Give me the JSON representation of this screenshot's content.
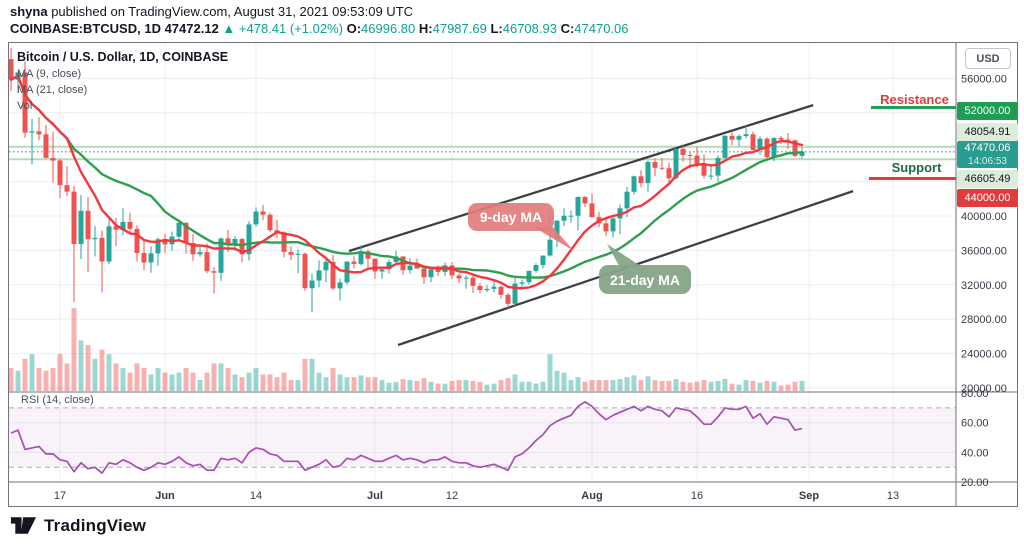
{
  "header": {
    "line1_parts": [
      {
        "text": "shyna",
        "bold": true
      },
      {
        "text": " published on TradingView.com, August 31, 2021 09:53:09 UTC"
      }
    ],
    "line2_parts": [
      {
        "text": "COINBASE:BTCUSD, 1D ",
        "bold": true
      },
      {
        "text": "47472.12 ",
        "bold": true
      },
      {
        "text": "▲ +478.41 (+1.02%) ",
        "color": "#0aa096"
      },
      {
        "text": "O:",
        "bold": true
      },
      {
        "text": "46996.80 ",
        "color": "#0aa096"
      },
      {
        "text": "H:",
        "bold": true
      },
      {
        "text": "47987.69 ",
        "color": "#0aa096"
      },
      {
        "text": "L:",
        "bold": true
      },
      {
        "text": "46708.93 ",
        "color": "#0aa096"
      },
      {
        "text": "C:",
        "bold": true
      },
      {
        "text": "47470.06",
        "color": "#0aa096"
      }
    ]
  },
  "chart": {
    "symbol_title": "Bitcoin / U.S. Dollar, 1D, COINBASE",
    "ma9_label": "MA (9, close)",
    "ma21_label": "MA (21, close)",
    "vol_label": "Vol",
    "rsi_label": "RSI (14, close)",
    "currency_button": "USD",
    "resistance_label": "Resistance",
    "support_label": "Support",
    "ma9_callout": "9-day MA",
    "ma21_callout": "21-day MA",
    "axis_badges": {
      "resistance_price": "52000.00",
      "high_line_price": "48054.91",
      "last_price": "47470.06",
      "countdown": "14:06:53",
      "low_line_price": "46605.49",
      "support_price": "44000.00"
    }
  },
  "footer": {
    "logo_text": "TradingView"
  },
  "colors": {
    "up": "#26a69a",
    "down": "#ef5350",
    "vol_up": "rgba(38,166,154,0.45)",
    "vol_down": "rgba(239,83,80,0.45)",
    "ma9": "#f0393f",
    "ma21": "#2f9e4f",
    "rsi": "#a64fb0",
    "rsi_band": "rgba(166,79,176,0.07)",
    "rsi_dash": "#a9abb8",
    "grid": "rgba(90,120,150,0.12)",
    "divider": "#6e7178",
    "trend": "#3f4044",
    "level_green": "#b7dcb8",
    "last_dotted": "#2a9d8f",
    "axis_text": "#363a45"
  },
  "chart_data": {
    "type": "candlestick",
    "title": "Bitcoin / U.S. Dollar, 1D, COINBASE",
    "interval": "1D",
    "start_date": "2021-05-10",
    "y_range": [
      20000,
      59000
    ],
    "rsi_range": [
      20,
      80
    ],
    "price_axis_ticks": [
      {
        "price": 56000,
        "label": "56000.00"
      },
      {
        "price": 52000,
        "label": "52000.00",
        "hidden": true
      },
      {
        "price": 48000,
        "label": "48000.00",
        "hidden": true
      },
      {
        "price": 44000,
        "label": "44000.00",
        "hidden": true
      },
      {
        "price": 40000,
        "label": "40000.00"
      },
      {
        "price": 36000,
        "label": "36000.00"
      },
      {
        "price": 32000,
        "label": "32000.00"
      },
      {
        "price": 28000,
        "label": "28000.00"
      },
      {
        "price": 24000,
        "label": "24000.00"
      },
      {
        "price": 20000,
        "label": "20000.00"
      }
    ],
    "rsi_axis_ticks": [
      {
        "v": 80,
        "label": "80.00"
      },
      {
        "v": 60,
        "label": "60.00"
      },
      {
        "v": 40,
        "label": "40.00"
      },
      {
        "v": 20,
        "label": "20.00"
      }
    ],
    "time_ticks": [
      {
        "i": 7,
        "label": "17"
      },
      {
        "i": 22,
        "label": "Jun",
        "bold": true
      },
      {
        "i": 35,
        "label": "14"
      },
      {
        "i": 52,
        "label": "Jul",
        "bold": true
      },
      {
        "i": 63,
        "label": "12"
      },
      {
        "i": 83,
        "label": "Aug",
        "bold": true
      },
      {
        "i": 98,
        "label": "16"
      },
      {
        "i": 114,
        "label": "Sep",
        "bold": true
      },
      {
        "i": 126,
        "label": "13"
      }
    ],
    "levels": {
      "resistance": 52000,
      "support": 44000,
      "high_line": 48054.91,
      "last": 47470.06,
      "low_line": 46605.49
    },
    "trend_channel": {
      "upper": {
        "i1": 48.3,
        "p1": 35930,
        "i2": 114.6,
        "p2": 52900
      },
      "lower": {
        "i1": 55.3,
        "p1": 25000,
        "i2": 120.3,
        "p2": 42900
      }
    },
    "candles": [
      [
        58250,
        59500,
        54500,
        55850,
        25
      ],
      [
        55850,
        56800,
        54300,
        56700,
        22
      ],
      [
        56700,
        58000,
        49100,
        49700,
        35
      ],
      [
        49700,
        51300,
        46000,
        49850,
        40
      ],
      [
        49850,
        51500,
        48800,
        49500,
        25
      ],
      [
        49500,
        50600,
        46700,
        46760,
        22
      ],
      [
        46760,
        49800,
        43900,
        46450,
        25
      ],
      [
        46450,
        46600,
        42100,
        43580,
        40
      ],
      [
        43580,
        45800,
        42300,
        42840,
        30
      ],
      [
        42840,
        43500,
        30000,
        36750,
        90
      ],
      [
        36750,
        42450,
        35000,
        40600,
        55
      ],
      [
        40600,
        42200,
        33500,
        37300,
        50
      ],
      [
        37300,
        38800,
        35300,
        37450,
        35
      ],
      [
        37450,
        38300,
        31100,
        34700,
        45
      ],
      [
        34700,
        39900,
        34400,
        38800,
        40
      ],
      [
        38800,
        39800,
        36500,
        38400,
        30
      ],
      [
        38400,
        40900,
        37800,
        39300,
        25
      ],
      [
        39300,
        40400,
        37900,
        38500,
        20
      ],
      [
        38500,
        38900,
        34700,
        35700,
        30
      ],
      [
        35700,
        37300,
        33700,
        34600,
        25
      ],
      [
        34600,
        36500,
        33400,
        35650,
        18
      ],
      [
        35650,
        37500,
        34200,
        37300,
        25
      ],
      [
        37300,
        37900,
        35700,
        36700,
        20
      ],
      [
        36700,
        38200,
        35950,
        37600,
        18
      ],
      [
        37600,
        39500,
        37200,
        39200,
        20
      ],
      [
        39200,
        39300,
        35600,
        36860,
        25
      ],
      [
        36860,
        37900,
        34800,
        35550,
        20
      ],
      [
        35550,
        36450,
        35250,
        35800,
        12
      ],
      [
        35800,
        36800,
        33350,
        33580,
        20
      ],
      [
        33580,
        34070,
        31000,
        33400,
        30
      ],
      [
        33400,
        37500,
        32450,
        37400,
        30
      ],
      [
        37400,
        38400,
        35800,
        36680,
        25
      ],
      [
        36680,
        37650,
        35950,
        37330,
        18
      ],
      [
        37330,
        37450,
        34600,
        35550,
        15
      ],
      [
        35550,
        39380,
        34820,
        39020,
        20
      ],
      [
        39020,
        41000,
        38750,
        40520,
        25
      ],
      [
        40520,
        41300,
        39500,
        40150,
        18
      ],
      [
        40150,
        40400,
        38100,
        38350,
        18
      ],
      [
        38350,
        39550,
        37400,
        38100,
        15
      ],
      [
        38100,
        38200,
        35200,
        35820,
        20
      ],
      [
        35820,
        36460,
        34850,
        35480,
        12
      ],
      [
        35480,
        36100,
        33350,
        35600,
        12
      ],
      [
        35600,
        35750,
        31300,
        31600,
        35
      ],
      [
        31600,
        33300,
        28800,
        32500,
        35
      ],
      [
        32500,
        34850,
        31700,
        33680,
        20
      ],
      [
        33680,
        35300,
        32300,
        34660,
        15
      ],
      [
        34660,
        35500,
        31350,
        31580,
        25
      ],
      [
        31580,
        32700,
        30150,
        32280,
        18
      ],
      [
        32280,
        34750,
        32000,
        34700,
        15
      ],
      [
        34700,
        35300,
        33900,
        34430,
        15
      ],
      [
        34430,
        36600,
        34250,
        35900,
        17
      ],
      [
        35900,
        36100,
        34000,
        35040,
        15
      ],
      [
        35040,
        35060,
        32700,
        33550,
        15
      ],
      [
        33550,
        33950,
        32700,
        33800,
        12
      ],
      [
        33800,
        34950,
        33300,
        34650,
        9
      ],
      [
        34650,
        35950,
        34350,
        35300,
        10
      ],
      [
        35300,
        35300,
        33150,
        33700,
        13
      ],
      [
        33700,
        35100,
        33300,
        34230,
        12
      ],
      [
        34230,
        35050,
        33900,
        33880,
        11
      ],
      [
        33880,
        33900,
        32100,
        32880,
        14
      ],
      [
        32880,
        34100,
        32300,
        33800,
        10
      ],
      [
        33800,
        34250,
        33050,
        33500,
        8
      ],
      [
        33500,
        34600,
        33000,
        34250,
        8
      ],
      [
        34250,
        34660,
        32650,
        33080,
        11
      ],
      [
        33080,
        33340,
        32200,
        32730,
        12
      ],
      [
        32730,
        33100,
        31550,
        32820,
        12
      ],
      [
        32820,
        33190,
        31050,
        31870,
        11
      ],
      [
        31870,
        32250,
        31020,
        31380,
        10
      ],
      [
        31380,
        31950,
        31150,
        31520,
        7
      ],
      [
        31520,
        32430,
        31100,
        31780,
        8
      ],
      [
        31780,
        31890,
        30400,
        30840,
        12
      ],
      [
        30840,
        31050,
        29300,
        29790,
        14
      ],
      [
        29790,
        32800,
        29480,
        32140,
        18
      ],
      [
        32140,
        32590,
        31700,
        32290,
        10
      ],
      [
        32290,
        33650,
        32030,
        33630,
        10
      ],
      [
        33630,
        34500,
        33400,
        34290,
        8
      ],
      [
        34290,
        35400,
        33900,
        35400,
        10
      ],
      [
        35400,
        40550,
        35250,
        37240,
        40
      ],
      [
        37240,
        39540,
        36400,
        39450,
        22
      ],
      [
        39450,
        40900,
        38800,
        40020,
        20
      ],
      [
        40020,
        40640,
        39200,
        40040,
        12
      ],
      [
        40040,
        42300,
        38320,
        42210,
        15
      ],
      [
        42210,
        42320,
        41050,
        41460,
        10
      ],
      [
        41460,
        42600,
        39850,
        39870,
        12
      ],
      [
        39870,
        40480,
        38690,
        39150,
        12
      ],
      [
        39150,
        39780,
        37640,
        38210,
        12
      ],
      [
        38210,
        39970,
        37510,
        39720,
        12
      ],
      [
        39720,
        41350,
        37870,
        40890,
        13
      ],
      [
        40890,
        43400,
        39880,
        42820,
        15
      ],
      [
        42820,
        44700,
        42460,
        44620,
        17
      ],
      [
        44620,
        45310,
        43320,
        43830,
        12
      ],
      [
        43830,
        46450,
        42840,
        46280,
        16
      ],
      [
        46280,
        46700,
        44620,
        45600,
        12
      ],
      [
        45600,
        46740,
        45350,
        45560,
        11
      ],
      [
        45560,
        46230,
        43770,
        44400,
        11
      ],
      [
        44400,
        47840,
        44240,
        47810,
        13
      ],
      [
        47810,
        48150,
        46300,
        47100,
        10
      ],
      [
        47100,
        47380,
        45550,
        47020,
        9
      ],
      [
        47020,
        48050,
        45660,
        45930,
        10
      ],
      [
        45930,
        47160,
        44400,
        44690,
        12
      ],
      [
        44690,
        46000,
        44220,
        44700,
        10
      ],
      [
        44700,
        47030,
        43960,
        46760,
        11
      ],
      [
        46760,
        49380,
        46640,
        49320,
        13
      ],
      [
        49320,
        49750,
        48240,
        48870,
        8
      ],
      [
        48870,
        49490,
        48100,
        49290,
        7
      ],
      [
        49290,
        50500,
        49050,
        49500,
        12
      ],
      [
        49500,
        49860,
        47600,
        47680,
        11
      ],
      [
        47680,
        49270,
        47120,
        48990,
        9
      ],
      [
        48990,
        49150,
        46350,
        46850,
        11
      ],
      [
        46850,
        49150,
        46370,
        49070,
        10
      ],
      [
        49070,
        49300,
        48370,
        48900,
        6
      ],
      [
        48900,
        49650,
        47800,
        48800,
        7
      ],
      [
        48800,
        48890,
        46870,
        46990,
        10
      ],
      [
        46996,
        47988,
        46709,
        47470,
        11
      ]
    ],
    "rsi": [
      53,
      55,
      42,
      43,
      44,
      39,
      39,
      35,
      34,
      27,
      33,
      29,
      30,
      26,
      33,
      32,
      35,
      33,
      30,
      28,
      30,
      33,
      32,
      34,
      37,
      33,
      31,
      32,
      28,
      28,
      36,
      35,
      36,
      33,
      40,
      43,
      42,
      39,
      38,
      34,
      34,
      34,
      28,
      30,
      32,
      35,
      30,
      31,
      36,
      35,
      38,
      36,
      34,
      34,
      36,
      38,
      35,
      36,
      35,
      33,
      35,
      35,
      37,
      34,
      33,
      33,
      31,
      30,
      31,
      32,
      30,
      28,
      37,
      39,
      43,
      48,
      52,
      58,
      61,
      63,
      65,
      71,
      74,
      71,
      66,
      62,
      65,
      67,
      69,
      71,
      68,
      71,
      69,
      68,
      64,
      70,
      69,
      68,
      64,
      59,
      59,
      64,
      70,
      69,
      69,
      71,
      63,
      66,
      59,
      64,
      63,
      62,
      55,
      56
    ]
  }
}
